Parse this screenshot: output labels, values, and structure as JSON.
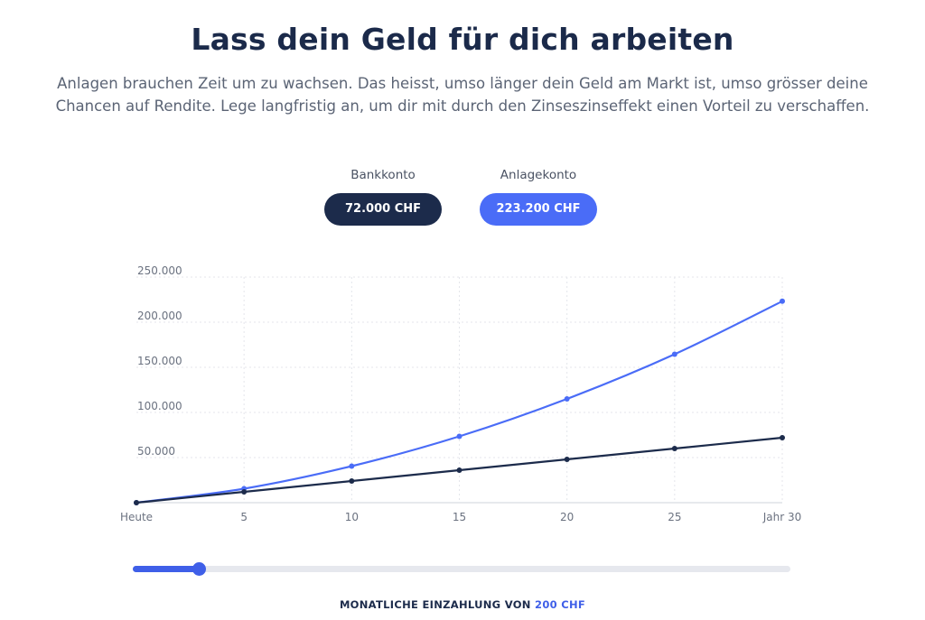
{
  "header": {
    "title": "Lass dein Geld für dich arbeiten",
    "subtitle": "Anlagen brauchen Zeit um zu wachsen. Das heisst, umso länger dein Geld am Markt ist, umso grösser deine Chancen auf Rendite. Lege langfristig an, um dir mit durch den Zinseszinseffekt einen Vorteil zu verschaffen."
  },
  "summary": {
    "bank_label": "Bankkonto",
    "bank_value": "72.000 CHF",
    "invest_label": "Anlagekonto",
    "invest_value": "223.200 CHF"
  },
  "colors": {
    "bank": "#1c2b4b",
    "invest": "#4a6cf7",
    "slider": "#3f5fe8"
  },
  "chart_data": {
    "type": "line",
    "x": [
      0,
      5,
      10,
      15,
      20,
      25,
      30
    ],
    "x_tick_labels": [
      "Heute",
      "5",
      "10",
      "15",
      "20",
      "25",
      "Jahr 30"
    ],
    "y_tick_labels": [
      "50.000",
      "100.000",
      "150.000",
      "200.000",
      "250.000"
    ],
    "y_ticks": [
      50000,
      100000,
      150000,
      200000,
      250000
    ],
    "ylim": [
      0,
      250000
    ],
    "xlim": [
      0,
      30
    ],
    "grid": true,
    "series": [
      {
        "key": "invest",
        "values": [
          0,
          15500,
          40500,
          73500,
          115000,
          164500,
          223200
        ]
      },
      {
        "key": "bank",
        "values": [
          0,
          12000,
          24000,
          36000,
          48000,
          60000,
          72000
        ]
      }
    ]
  },
  "slider": {
    "min": 0,
    "max": 2000,
    "value": 200
  },
  "deposit": {
    "caption": "MONATLICHE EINZAHLUNG VON",
    "value": "200 CHF"
  }
}
